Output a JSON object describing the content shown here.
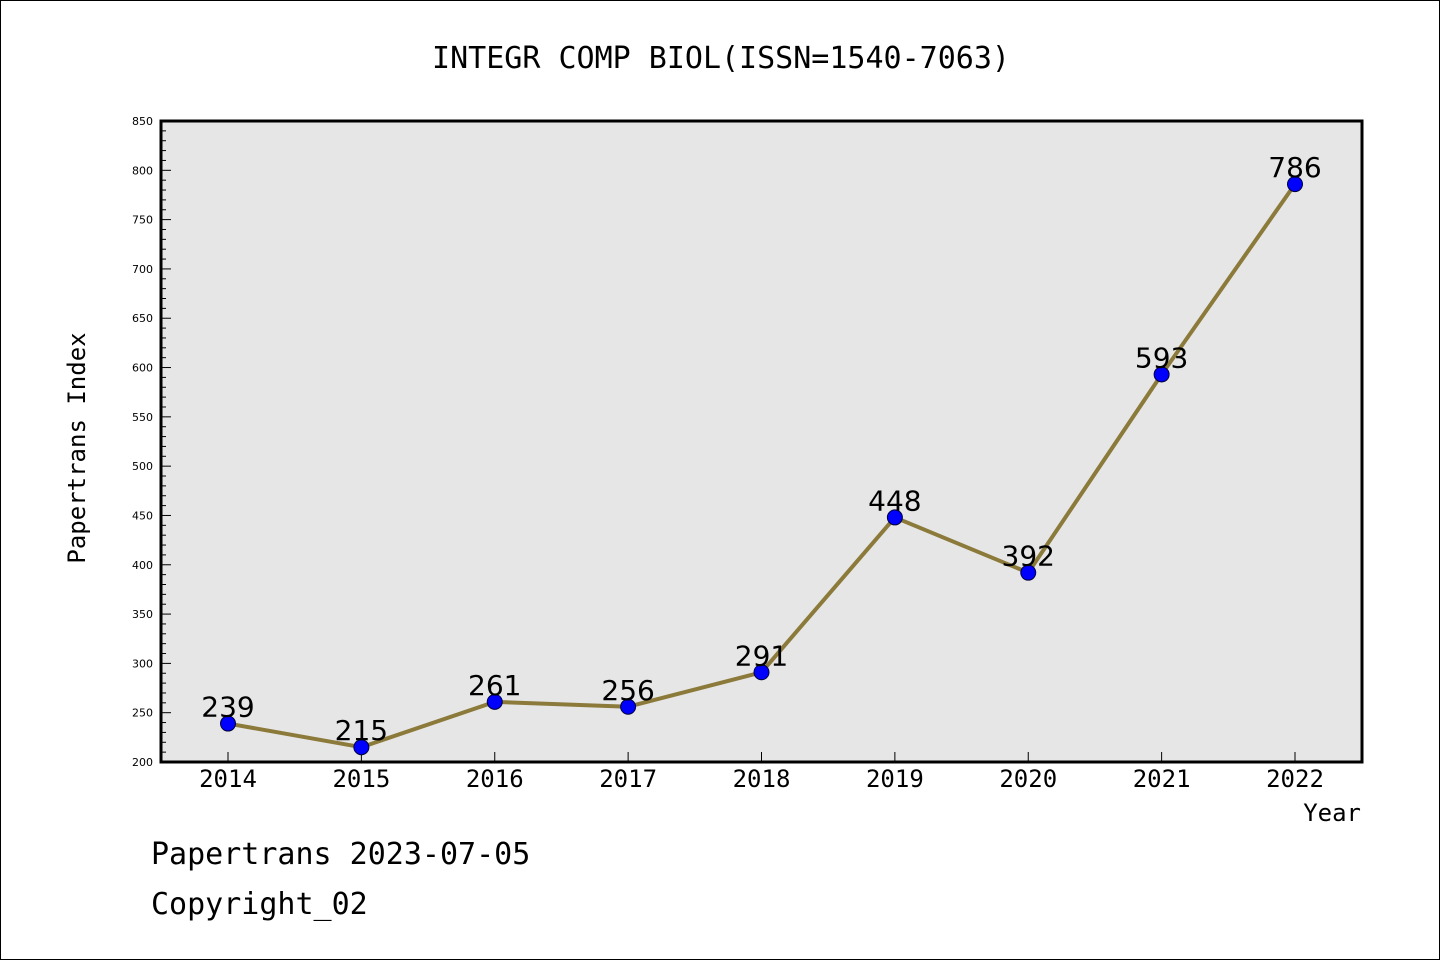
{
  "footer": {
    "line1": "Papertrans 2023-07-05",
    "line2": "Copyright_02"
  },
  "colors": {
    "line": "#8b7a3a",
    "marker": "#0000ff",
    "plot_background": "#e6e6e6",
    "axis": "#000000"
  },
  "chart_data": {
    "type": "line",
    "title": "INTEGR COMP BIOL(ISSN=1540-7063)",
    "xlabel": "Year",
    "ylabel": "Papertrans Index",
    "categories": [
      "2014",
      "2015",
      "2016",
      "2017",
      "2018",
      "2019",
      "2020",
      "2021",
      "2022"
    ],
    "series": [
      {
        "values": [
          239,
          215,
          261,
          256,
          291,
          448,
          392,
          593,
          786
        ]
      }
    ],
    "data_labels": [
      "239",
      "215",
      "261",
      "256",
      "291",
      "448",
      "392",
      "593",
      "786"
    ],
    "ylim": [
      200,
      850
    ],
    "yticks": [
      "200",
      "250",
      "300",
      "350",
      "400",
      "450",
      "500",
      "550",
      "600",
      "650",
      "700",
      "750",
      "800",
      "850"
    ],
    "grid": false,
    "legend": "none"
  }
}
